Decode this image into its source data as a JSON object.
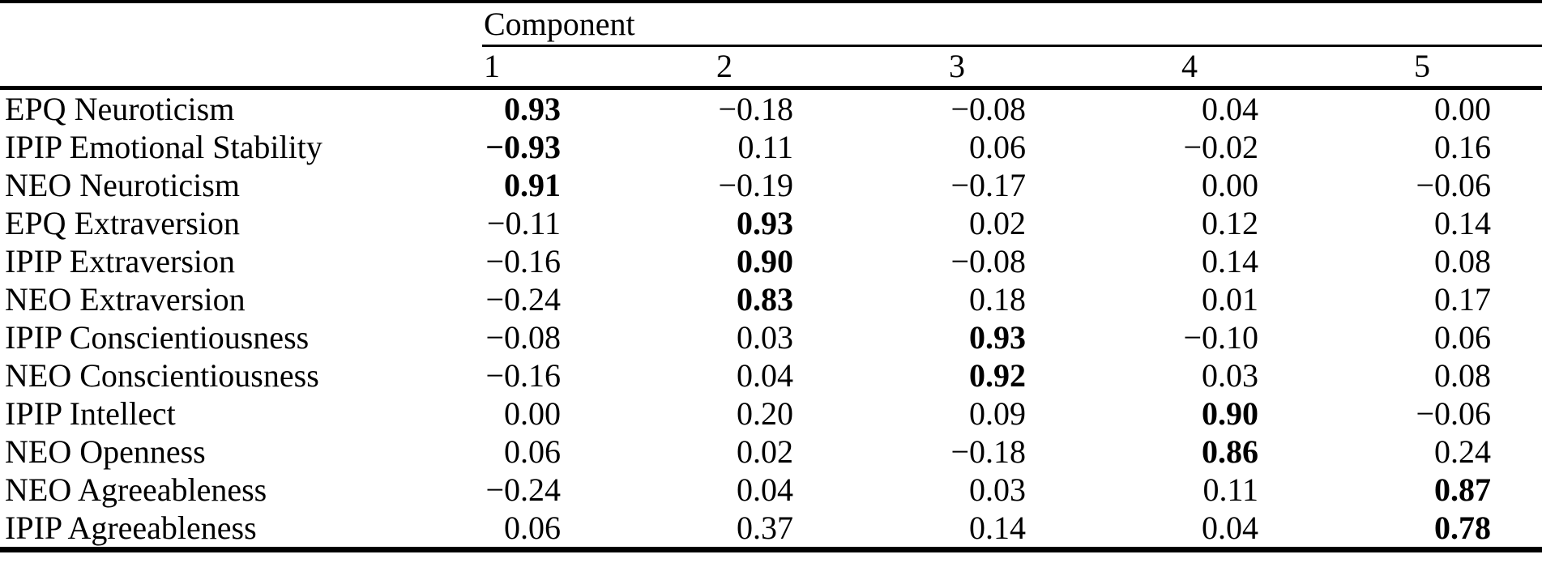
{
  "table": {
    "spanner_label": "Component",
    "column_headers": [
      "1",
      "2",
      "3",
      "4",
      "5"
    ],
    "rows": [
      {
        "label": "EPQ Neuroticism",
        "values": [
          "0.93",
          "−0.18",
          "−0.08",
          "0.04",
          "0.00"
        ],
        "bold_index": 0
      },
      {
        "label": "IPIP Emotional Stability",
        "values": [
          "−0.93",
          "0.11",
          "0.06",
          "−0.02",
          "0.16"
        ],
        "bold_index": 0
      },
      {
        "label": "NEO Neuroticism",
        "values": [
          "0.91",
          "−0.19",
          "−0.17",
          "0.00",
          "−0.06"
        ],
        "bold_index": 0
      },
      {
        "label": "EPQ Extraversion",
        "values": [
          "−0.11",
          "0.93",
          "0.02",
          "0.12",
          "0.14"
        ],
        "bold_index": 1
      },
      {
        "label": "IPIP Extraversion",
        "values": [
          "−0.16",
          "0.90",
          "−0.08",
          "0.14",
          "0.08"
        ],
        "bold_index": 1
      },
      {
        "label": "NEO Extraversion",
        "values": [
          "−0.24",
          "0.83",
          "0.18",
          "0.01",
          "0.17"
        ],
        "bold_index": 1
      },
      {
        "label": "IPIP Conscientiousness",
        "values": [
          "−0.08",
          "0.03",
          "0.93",
          "−0.10",
          "0.06"
        ],
        "bold_index": 2
      },
      {
        "label": "NEO Conscientiousness",
        "values": [
          "−0.16",
          "0.04",
          "0.92",
          "0.03",
          "0.08"
        ],
        "bold_index": 2
      },
      {
        "label": "IPIP Intellect",
        "values": [
          "0.00",
          "0.20",
          "0.09",
          "0.90",
          "−0.06"
        ],
        "bold_index": 3
      },
      {
        "label": "NEO Openness",
        "values": [
          "0.06",
          "0.02",
          "−0.18",
          "0.86",
          "0.24"
        ],
        "bold_index": 3
      },
      {
        "label": "NEO Agreeableness",
        "values": [
          "−0.24",
          "0.04",
          "0.03",
          "0.11",
          "0.87"
        ],
        "bold_index": 4
      },
      {
        "label": "IPIP Agreeableness",
        "values": [
          "0.06",
          "0.37",
          "0.14",
          "0.04",
          "0.78"
        ],
        "bold_index": 4
      }
    ]
  },
  "colors": {
    "text": "#000000",
    "rule": "#000000",
    "background": "#ffffff"
  }
}
